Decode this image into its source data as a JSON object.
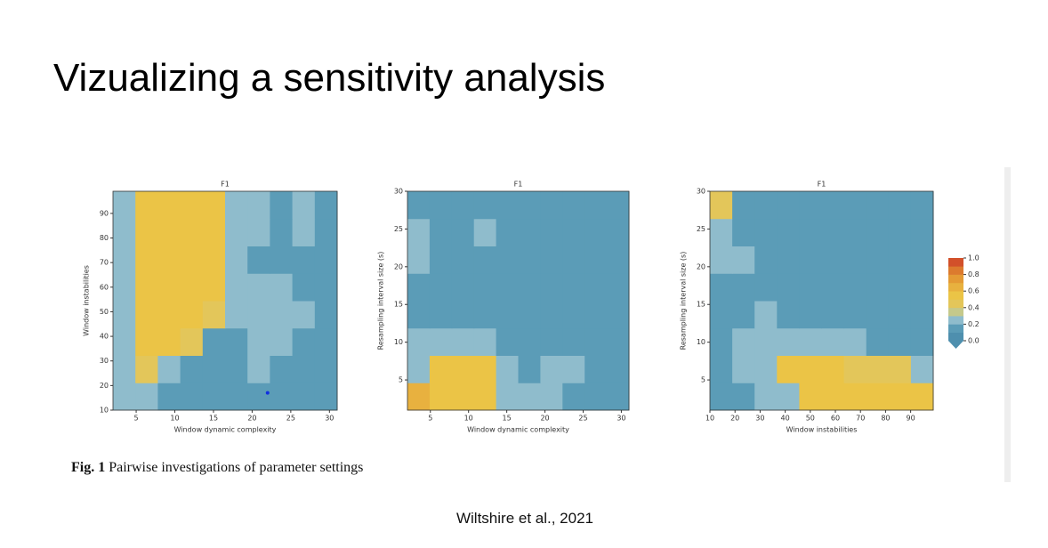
{
  "title": "Vizualizing a sensitivity analysis",
  "caption": {
    "label": "Fig. 1",
    "text": "Pairwise investigations of parameter settings"
  },
  "citation": "Wiltshire et al., 2021",
  "colorbar": {
    "levels": [
      0,
      0.1,
      0.2,
      0.3,
      0.4,
      0.5,
      0.6,
      0.7,
      0.8,
      0.9,
      1.0
    ],
    "colors": [
      "#4e8fae",
      "#5b9cb7",
      "#8fbccc",
      "#c5c98b",
      "#e3c65a",
      "#ebc446",
      "#e8b13f",
      "#e49a35",
      "#dc7a2e",
      "#d2502a"
    ],
    "ticks": [
      {
        "value": 0,
        "label": "0.0"
      },
      0.2,
      0.4,
      0.6,
      0.8,
      {
        "value": 1,
        "label": "1.0"
      }
    ]
  },
  "chart_data": [
    {
      "type": "contour",
      "title": "F1",
      "xlabel": "Window dynamic complexity",
      "ylabel": "Window instabilities",
      "xlim": [
        2,
        31
      ],
      "ylim": [
        10,
        99
      ],
      "xticks": [
        5,
        10,
        15,
        20,
        25,
        30
      ],
      "yticks": [
        10,
        20,
        30,
        40,
        50,
        60,
        70,
        80,
        90
      ],
      "z": [
        [
          0.25,
          0.25,
          0.15,
          0.15,
          0.15,
          0.15,
          0.15,
          0.15,
          0.15,
          0.15
        ],
        [
          0.25,
          0.45,
          0.25,
          0.15,
          0.15,
          0.15,
          0.25,
          0.15,
          0.15,
          0.15
        ],
        [
          0.25,
          0.5,
          0.5,
          0.45,
          0.15,
          0.15,
          0.25,
          0.25,
          0.15,
          0.15
        ],
        [
          0.25,
          0.5,
          0.5,
          0.5,
          0.45,
          0.25,
          0.25,
          0.25,
          0.25,
          0.15
        ],
        [
          0.25,
          0.5,
          0.55,
          0.55,
          0.5,
          0.25,
          0.25,
          0.25,
          0.15,
          0.15
        ],
        [
          0.25,
          0.5,
          0.5,
          0.55,
          0.55,
          0.25,
          0.15,
          0.15,
          0.15,
          0.15
        ],
        [
          0.25,
          0.5,
          0.5,
          0.5,
          0.5,
          0.25,
          0.25,
          0.15,
          0.25,
          0.15
        ],
        [
          0.25,
          0.5,
          0.5,
          0.5,
          0.5,
          0.25,
          0.25,
          0.15,
          0.25,
          0.15
        ]
      ],
      "marker": {
        "x": 22,
        "y": 17,
        "color": "#1030e0"
      }
    },
    {
      "type": "contour",
      "title": "F1",
      "xlabel": "Window dynamic complexity",
      "ylabel": "Resampling interval size (s)",
      "xlim": [
        2,
        31
      ],
      "ylim": [
        1,
        30
      ],
      "xticks": [
        5,
        10,
        15,
        20,
        25,
        30
      ],
      "yticks": [
        5,
        10,
        15,
        20,
        25,
        30
      ],
      "z": [
        [
          0.65,
          0.5,
          0.5,
          0.5,
          0.25,
          0.25,
          0.25,
          0.15,
          0.15,
          0.15
        ],
        [
          0.25,
          0.5,
          0.55,
          0.5,
          0.25,
          0.15,
          0.25,
          0.25,
          0.15,
          0.15
        ],
        [
          0.25,
          0.25,
          0.25,
          0.25,
          0.15,
          0.15,
          0.15,
          0.15,
          0.15,
          0.15
        ],
        [
          0.15,
          0.15,
          0.15,
          0.15,
          0.15,
          0.15,
          0.15,
          0.15,
          0.15,
          0.15
        ],
        [
          0.15,
          0.15,
          0.15,
          0.15,
          0.15,
          0.15,
          0.15,
          0.15,
          0.15,
          0.15
        ],
        [
          0.25,
          0.15,
          0.15,
          0.15,
          0.15,
          0.15,
          0.15,
          0.15,
          0.15,
          0.15
        ],
        [
          0.25,
          0.15,
          0.15,
          0.25,
          0.15,
          0.15,
          0.15,
          0.15,
          0.15,
          0.15
        ],
        [
          0.15,
          0.15,
          0.15,
          0.15,
          0.15,
          0.15,
          0.15,
          0.15,
          0.15,
          0.15
        ]
      ]
    },
    {
      "type": "contour",
      "title": "F1",
      "xlabel": "Window instabilities",
      "ylabel": "Resampling interval size (s)",
      "xlim": [
        10,
        99
      ],
      "ylim": [
        1,
        30
      ],
      "xticks": [
        10,
        20,
        30,
        40,
        50,
        60,
        70,
        80,
        90
      ],
      "yticks": [
        5,
        10,
        15,
        20,
        25,
        30
      ],
      "z": [
        [
          0.15,
          0.15,
          0.25,
          0.25,
          0.5,
          0.5,
          0.5,
          0.5,
          0.5,
          0.5
        ],
        [
          0.15,
          0.25,
          0.25,
          0.5,
          0.5,
          0.5,
          0.45,
          0.45,
          0.45,
          0.25
        ],
        [
          0.15,
          0.25,
          0.25,
          0.25,
          0.25,
          0.25,
          0.25,
          0.15,
          0.15,
          0.15
        ],
        [
          0.15,
          0.15,
          0.25,
          0.15,
          0.15,
          0.15,
          0.15,
          0.15,
          0.15,
          0.15
        ],
        [
          0.15,
          0.15,
          0.15,
          0.15,
          0.15,
          0.15,
          0.15,
          0.15,
          0.15,
          0.15
        ],
        [
          0.25,
          0.25,
          0.15,
          0.15,
          0.15,
          0.15,
          0.15,
          0.15,
          0.15,
          0.15
        ],
        [
          0.25,
          0.15,
          0.15,
          0.15,
          0.15,
          0.15,
          0.15,
          0.15,
          0.15,
          0.15
        ],
        [
          0.45,
          0.15,
          0.15,
          0.15,
          0.15,
          0.15,
          0.15,
          0.15,
          0.15,
          0.15
        ]
      ]
    }
  ]
}
